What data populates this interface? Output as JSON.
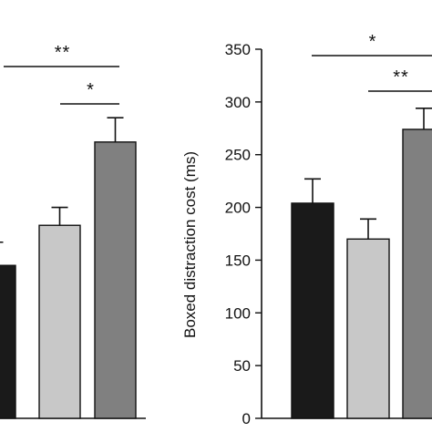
{
  "chart_data": [
    {
      "type": "bar",
      "title": "",
      "xlabel": "",
      "ylabel": "",
      "ylim": [
        0,
        350
      ],
      "series": [
        {
          "values": [
            145,
            183,
            262
          ],
          "errors": [
            22,
            17,
            23
          ],
          "colors": [
            "#1a1a1a",
            "#c8c8c8",
            "#808080"
          ]
        }
      ],
      "significance": [
        {
          "label": "**",
          "from": 0,
          "to": 2
        },
        {
          "label": "*",
          "from": 1,
          "to": 2
        }
      ]
    },
    {
      "type": "bar",
      "title": "",
      "xlabel": "",
      "ylabel": "Boxed distraction cost (ms)",
      "ylim": [
        0,
        350
      ],
      "yticks": [
        0,
        50,
        100,
        150,
        200,
        250,
        300,
        350
      ],
      "series": [
        {
          "values": [
            204,
            170,
            274
          ],
          "errors": [
            23,
            19,
            20
          ],
          "colors": [
            "#1a1a1a",
            "#c8c8c8",
            "#808080"
          ]
        }
      ],
      "significance": [
        {
          "label": "*",
          "from": 0,
          "to": 2
        },
        {
          "label": "**",
          "from": 1,
          "to": 2
        }
      ]
    }
  ]
}
